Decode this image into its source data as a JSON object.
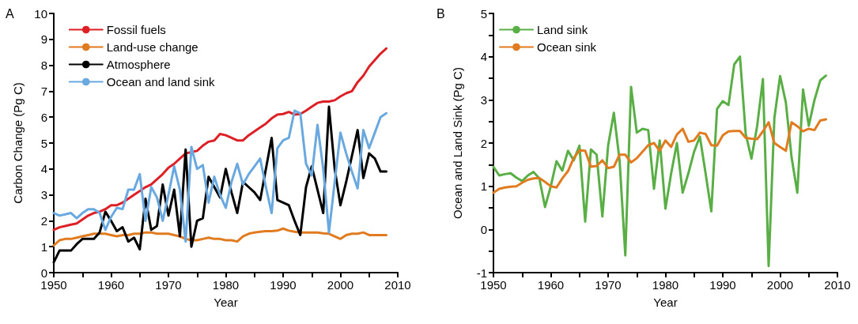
{
  "chart_data": [
    {
      "type": "line",
      "title": "A",
      "xlabel": "Year",
      "ylabel": "Carbon Change (Pg C)",
      "legend": "top left",
      "grid": false,
      "marker": "none",
      "line_style": "solid",
      "x": [
        1950,
        1951,
        1952,
        1953,
        1954,
        1955,
        1956,
        1957,
        1958,
        1959,
        1960,
        1961,
        1962,
        1963,
        1964,
        1965,
        1966,
        1967,
        1968,
        1969,
        1970,
        1971,
        1972,
        1973,
        1974,
        1975,
        1976,
        1977,
        1978,
        1979,
        1980,
        1981,
        1982,
        1983,
        1984,
        1985,
        1986,
        1987,
        1988,
        1989,
        1990,
        1991,
        1992,
        1993,
        1994,
        1995,
        1996,
        1997,
        1998,
        1999,
        2000,
        2001,
        2002,
        2003,
        2004,
        2005,
        2006,
        2007,
        2008
      ],
      "xlim": [
        1950,
        2010
      ],
      "xticks": [
        1950,
        {
          "value": 1955,
          "label": null
        },
        1960,
        {
          "value": 1965,
          "label": null
        },
        1970,
        {
          "value": 1975,
          "label": null
        },
        1980,
        {
          "value": 1985,
          "label": null
        },
        1990,
        {
          "value": 1995,
          "label": null
        },
        2000,
        {
          "value": 2005,
          "label": null
        },
        2010
      ],
      "ylim": [
        0,
        10
      ],
      "yticks": [
        0,
        1,
        2,
        3,
        4,
        5,
        6,
        7,
        8,
        9,
        10
      ],
      "series": [
        {
          "name": "Fossil fuels",
          "color": "#dd1f26",
          "values": [
            1.65,
            1.75,
            1.8,
            1.85,
            1.9,
            2.05,
            2.2,
            2.3,
            2.35,
            2.45,
            2.6,
            2.6,
            2.7,
            2.85,
            3.0,
            3.15,
            3.3,
            3.4,
            3.6,
            3.8,
            4.05,
            4.2,
            4.4,
            4.6,
            4.65,
            4.7,
            4.9,
            5.05,
            5.1,
            5.35,
            5.3,
            5.2,
            5.1,
            5.1,
            5.3,
            5.45,
            5.6,
            5.75,
            5.95,
            6.1,
            6.12,
            6.2,
            6.1,
            6.12,
            6.25,
            6.4,
            6.55,
            6.6,
            6.6,
            6.65,
            6.8,
            6.92,
            7.0,
            7.35,
            7.6,
            7.95,
            8.2,
            8.45,
            8.65
          ]
        },
        {
          "name": "Land-use change",
          "color": "#e07b20",
          "values": [
            1.05,
            1.25,
            1.3,
            1.3,
            1.35,
            1.4,
            1.45,
            1.5,
            1.5,
            1.5,
            1.45,
            1.4,
            1.45,
            1.45,
            1.5,
            1.5,
            1.55,
            1.55,
            1.5,
            1.5,
            1.5,
            1.45,
            1.4,
            1.3,
            1.25,
            1.25,
            1.3,
            1.35,
            1.3,
            1.3,
            1.25,
            1.25,
            1.2,
            1.4,
            1.5,
            1.55,
            1.58,
            1.6,
            1.6,
            1.62,
            1.7,
            1.62,
            1.58,
            1.55,
            1.55,
            1.55,
            1.55,
            1.52,
            1.5,
            1.4,
            1.3,
            1.45,
            1.5,
            1.5,
            1.55,
            1.45,
            1.45,
            1.45,
            1.45
          ]
        },
        {
          "name": "Atmosphere",
          "color": "#000000",
          "values": [
            0.4,
            0.85,
            0.85,
            0.85,
            1.1,
            1.3,
            1.3,
            1.3,
            1.55,
            2.35,
            2.0,
            1.6,
            1.75,
            1.2,
            1.35,
            0.9,
            2.85,
            1.65,
            1.8,
            3.4,
            2.2,
            3.2,
            1.4,
            4.75,
            1.0,
            2.0,
            2.1,
            3.7,
            3.3,
            2.9,
            4.0,
            3.1,
            2.3,
            3.5,
            3.3,
            3.1,
            2.8,
            4.0,
            5.2,
            2.8,
            2.7,
            2.6,
            2.0,
            1.45,
            3.3,
            4.1,
            3.2,
            2.3,
            6.4,
            4.0,
            2.6,
            3.5,
            4.5,
            5.5,
            3.65,
            4.6,
            4.4,
            3.9,
            3.9
          ]
        },
        {
          "name": "Ocean and land sink",
          "color": "#6aa8e0",
          "values": [
            2.3,
            2.2,
            2.25,
            2.3,
            2.1,
            2.3,
            2.45,
            2.45,
            2.3,
            1.65,
            2.15,
            2.5,
            2.45,
            3.2,
            3.2,
            3.8,
            2.0,
            3.3,
            2.9,
            2.0,
            3.0,
            4.1,
            3.2,
            1.2,
            4.85,
            4.0,
            4.15,
            2.7,
            3.7,
            3.0,
            2.5,
            3.5,
            4.2,
            3.4,
            3.8,
            4.1,
            4.4,
            3.3,
            2.3,
            4.8,
            5.1,
            5.2,
            6.25,
            6.15,
            4.2,
            3.75,
            5.7,
            4.0,
            1.55,
            3.5,
            5.4,
            4.6,
            3.9,
            3.25,
            5.5,
            4.8,
            5.4,
            6.0,
            6.15
          ]
        }
      ]
    },
    {
      "type": "line",
      "title": "B",
      "xlabel": "Year",
      "ylabel": "Ocean and Land Sink (Pg C)",
      "legend": "top left",
      "grid": false,
      "marker": "none",
      "line_style": "solid",
      "x": [
        1950,
        1951,
        1952,
        1953,
        1954,
        1955,
        1956,
        1957,
        1958,
        1959,
        1960,
        1961,
        1962,
        1963,
        1964,
        1965,
        1966,
        1967,
        1968,
        1969,
        1970,
        1971,
        1972,
        1973,
        1974,
        1975,
        1976,
        1977,
        1978,
        1979,
        1980,
        1981,
        1982,
        1983,
        1984,
        1985,
        1986,
        1987,
        1988,
        1989,
        1990,
        1991,
        1992,
        1993,
        1994,
        1995,
        1996,
        1997,
        1998,
        1999,
        2000,
        2001,
        2002,
        2003,
        2004,
        2005,
        2006,
        2007,
        2008
      ],
      "xlim": [
        1950,
        2010
      ],
      "xticks": [
        1950,
        {
          "value": 1955,
          "label": null
        },
        1960,
        {
          "value": 1965,
          "label": null
        },
        1970,
        {
          "value": 1975,
          "label": null
        },
        1980,
        {
          "value": 1985,
          "label": null
        },
        1990,
        {
          "value": 1995,
          "label": null
        },
        2000,
        {
          "value": 2005,
          "label": null
        },
        2010
      ],
      "ylim": [
        -1,
        5
      ],
      "yticks": [
        -1,
        {
          "value": -0.5,
          "label": null
        },
        0,
        {
          "value": 0.5,
          "label": null
        },
        1,
        {
          "value": 1.5,
          "label": null
        },
        2,
        {
          "value": 2.5,
          "label": null
        },
        3,
        {
          "value": 3.5,
          "label": null
        },
        4,
        {
          "value": 4.5,
          "label": null
        },
        5
      ],
      "series": [
        {
          "name": "Land sink",
          "color": "#5aae46",
          "values": [
            1.45,
            1.25,
            1.28,
            1.3,
            1.2,
            1.12,
            1.25,
            1.33,
            1.18,
            0.52,
            1.0,
            1.58,
            1.36,
            1.82,
            1.6,
            1.94,
            0.18,
            1.85,
            1.73,
            0.3,
            1.94,
            2.7,
            1.6,
            -0.6,
            3.3,
            2.24,
            2.33,
            2.3,
            0.94,
            2.06,
            0.48,
            1.3,
            2.0,
            0.85,
            1.3,
            1.8,
            2.15,
            1.3,
            0.42,
            2.79,
            2.97,
            2.88,
            3.82,
            4.0,
            2.21,
            1.64,
            2.4,
            3.48,
            -0.85,
            2.58,
            3.55,
            2.94,
            1.67,
            0.85,
            3.24,
            2.4,
            3.0,
            3.45,
            3.56
          ]
        },
        {
          "name": "Ocean sink",
          "color": "#e07b20",
          "values": [
            0.85,
            0.94,
            0.97,
            0.99,
            1.0,
            1.08,
            1.15,
            1.18,
            1.19,
            1.1,
            1.0,
            0.97,
            1.18,
            1.35,
            1.65,
            1.83,
            1.82,
            1.45,
            1.47,
            1.6,
            1.42,
            1.45,
            1.73,
            1.73,
            1.55,
            1.65,
            1.8,
            1.95,
            2.0,
            1.82,
            2.06,
            1.91,
            2.2,
            2.33,
            2.03,
            2.06,
            2.24,
            2.21,
            1.95,
            1.94,
            2.18,
            2.27,
            2.28,
            2.28,
            2.12,
            2.1,
            2.09,
            2.27,
            2.48,
            2.0,
            1.91,
            1.82,
            2.48,
            2.39,
            2.27,
            2.33,
            2.3,
            2.52,
            2.55
          ]
        }
      ]
    }
  ]
}
